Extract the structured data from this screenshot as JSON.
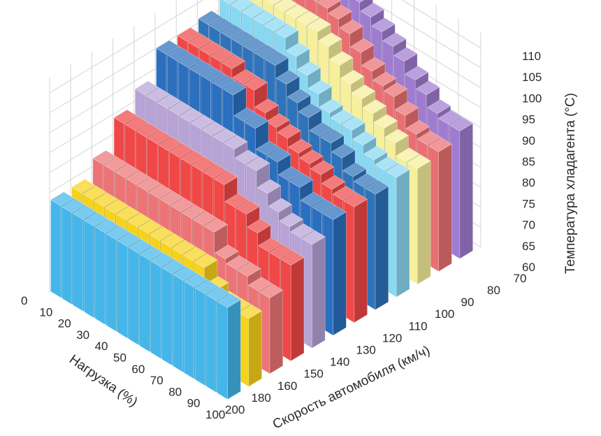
{
  "chart_data": {
    "type": "bar3d",
    "z_axis": {
      "label": "Температура хладагента (°C)",
      "ticks": [
        "60",
        "65",
        "70",
        "75",
        "80",
        "85",
        "90",
        "95",
        "100",
        "105",
        "110"
      ],
      "range": [
        60,
        110
      ]
    },
    "x_axis": {
      "label": "Нагрузка (%)",
      "ticks": [
        "0",
        "10",
        "20",
        "30",
        "40",
        "50",
        "60",
        "70",
        "80",
        "90",
        "100"
      ]
    },
    "y_axis": {
      "label": "Скорость автомобиля (км/ч)",
      "ticks": [
        "200",
        "180",
        "160",
        "150",
        "140",
        "130",
        "120",
        "110",
        "100",
        "90",
        "80",
        "70"
      ]
    },
    "series": [
      {
        "speed": "200",
        "color": "#45b6ea",
        "values": [
          83,
          83,
          83,
          83,
          83,
          83,
          83,
          83,
          83,
          83,
          83,
          83,
          83,
          83,
          83,
          83
        ]
      },
      {
        "speed": "180",
        "color": "#f7d21b",
        "values": [
          83,
          83,
          83,
          83,
          83,
          83,
          83,
          83,
          83,
          83,
          83,
          83,
          79,
          77,
          77,
          77
        ]
      },
      {
        "speed": "160",
        "color": "#ec7476",
        "values": [
          87,
          87,
          87,
          87,
          87,
          87,
          87,
          87,
          87,
          87,
          87,
          82,
          81,
          81,
          79,
          79
        ]
      },
      {
        "speed": "150",
        "color": "#f04747",
        "values": [
          94,
          94,
          94,
          94,
          94,
          94,
          94,
          94,
          94,
          94,
          90,
          90,
          87,
          84,
          84,
          84
        ]
      },
      {
        "speed": "140",
        "color": "#b7a3d6",
        "values": [
          98,
          98,
          98,
          98,
          98,
          98,
          98,
          98,
          98,
          96,
          96,
          92,
          89,
          87,
          86,
          86
        ]
      },
      {
        "speed": "130",
        "color": "#2b6fbf",
        "values": [
          105,
          105,
          105,
          105,
          105,
          105,
          105,
          100,
          100,
          95,
          95,
          92,
          92,
          89,
          89,
          89
        ]
      },
      {
        "speed": "120",
        "color": "#f04747",
        "values": [
          105,
          105,
          105,
          105,
          105,
          103,
          103,
          99,
          97,
          96,
          94,
          93,
          92,
          90,
          89,
          89
        ]
      },
      {
        "speed": "110",
        "color": "#2f73ba",
        "values": [
          106,
          106,
          106,
          106,
          106,
          106,
          106,
          103,
          100,
          98,
          95,
          95,
          93,
          90,
          89,
          89
        ]
      },
      {
        "speed": "100",
        "color": "#89d8f2",
        "values": [
          108,
          108,
          108,
          108,
          108,
          108,
          105,
          102,
          99,
          96,
          95,
          95,
          93,
          91,
          90,
          90
        ]
      },
      {
        "speed": "90",
        "color": "#f6ef9b",
        "values": [
          108,
          108,
          108,
          108,
          108,
          108,
          108,
          106,
          103,
          100,
          98,
          96,
          94,
          92,
          89,
          89
        ]
      },
      {
        "speed": "80",
        "color": "#ea6f72",
        "values": [
          109,
          109,
          109,
          109,
          109,
          109,
          108,
          106,
          103,
          100,
          98,
          97,
          94,
          91,
          90,
          90
        ]
      },
      {
        "speed": "70",
        "color": "#9f7cd0",
        "values": [
          109,
          109,
          109,
          109,
          109,
          109,
          109,
          107,
          105,
          103,
          101,
          98,
          96,
          93,
          92,
          92
        ]
      }
    ]
  }
}
